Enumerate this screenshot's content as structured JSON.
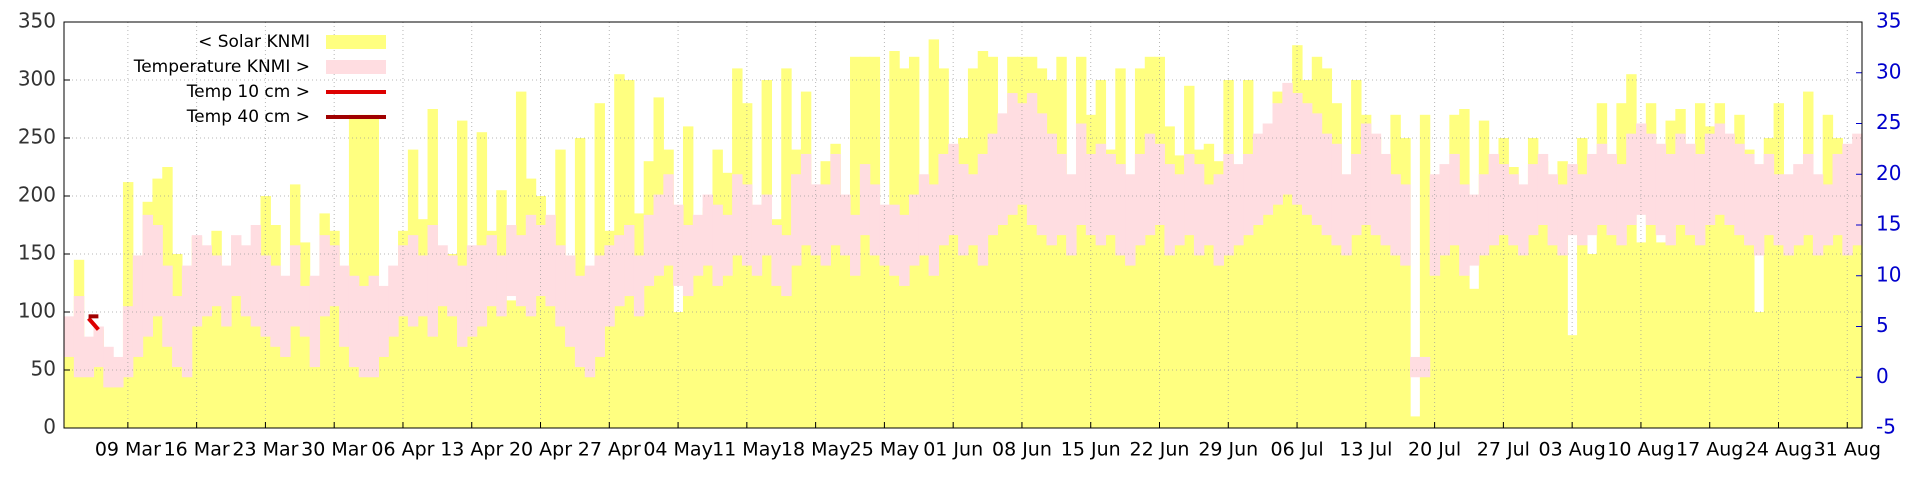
{
  "chart_data": {
    "type": "bar",
    "categories": [
      null,
      null,
      null,
      null,
      null,
      null,
      "09 Mar",
      null,
      null,
      null,
      null,
      null,
      null,
      "16 Mar",
      null,
      null,
      null,
      null,
      null,
      null,
      "23 Mar",
      null,
      null,
      null,
      null,
      null,
      null,
      "30 Mar",
      null,
      null,
      null,
      null,
      null,
      null,
      "06 Apr",
      null,
      null,
      null,
      null,
      null,
      null,
      "13 Apr",
      null,
      null,
      null,
      null,
      null,
      null,
      "20 Apr",
      null,
      null,
      null,
      null,
      null,
      null,
      "27 Apr",
      null,
      null,
      null,
      null,
      null,
      null,
      "04 May",
      null,
      null,
      null,
      null,
      null,
      null,
      "11 May",
      null,
      null,
      null,
      null,
      null,
      null,
      "18 May",
      null,
      null,
      null,
      null,
      null,
      null,
      "25 May",
      null,
      null,
      null,
      null,
      null,
      null,
      "01 Jun",
      null,
      null,
      null,
      null,
      null,
      null,
      "08 Jun",
      null,
      null,
      null,
      null,
      null,
      null,
      "15 Jun",
      null,
      null,
      null,
      null,
      null,
      null,
      "22 Jun",
      null,
      null,
      null,
      null,
      null,
      null,
      "29 Jun",
      null,
      null,
      null,
      null,
      null,
      null,
      "06 Jul",
      null,
      null,
      null,
      null,
      null,
      null,
      "13 Jul",
      null,
      null,
      null,
      null,
      null,
      null,
      "20 Jul",
      null,
      null,
      null,
      null,
      null,
      null,
      "27 Jul",
      null,
      null,
      null,
      null,
      null,
      null,
      "03 Aug",
      null,
      null,
      null,
      null,
      null,
      null,
      "10 Aug",
      null,
      null,
      null,
      null,
      null,
      null,
      "17 Aug",
      null,
      null,
      null,
      null,
      null,
      null,
      "24 Aug",
      null,
      null,
      null,
      null,
      null,
      null,
      "31 Aug",
      null
    ],
    "ylim": [
      0,
      350
    ],
    "yticks": [
      0,
      50,
      100,
      150,
      200,
      250,
      300,
      350
    ],
    "y2lim": [
      -5,
      35
    ],
    "y2ticks": [
      -5,
      0,
      5,
      10,
      15,
      20,
      25,
      30,
      35
    ],
    "grid": true,
    "legend": "upper left",
    "series": [
      {
        "name": "< Solar KNMI",
        "color": "#ffff80",
        "type": "bar",
        "values": [
          75,
          145,
          60,
          85,
          40,
          40,
          212,
          100,
          195,
          215,
          225,
          150,
          130,
          165,
          120,
          170,
          120,
          160,
          145,
          120,
          200,
          175,
          130,
          210,
          160,
          60,
          185,
          170,
          120,
          270,
          270,
          270,
          120,
          100,
          170,
          240,
          180,
          275,
          130,
          150,
          265,
          100,
          255,
          170,
          205,
          110,
          290,
          215,
          200,
          175,
          240,
          120,
          250,
          125,
          280,
          170,
          305,
          300,
          185,
          230,
          285,
          240,
          100,
          260,
          160,
          190,
          240,
          220,
          310,
          280,
          180,
          300,
          180,
          310,
          240,
          290,
          190,
          230,
          245,
          170,
          320,
          320,
          320,
          180,
          325,
          310,
          320,
          200,
          335,
          310,
          240,
          250,
          310,
          325,
          320,
          200,
          320,
          320,
          320,
          310,
          300,
          320,
          175,
          320,
          270,
          300,
          240,
          310,
          180,
          310,
          320,
          320,
          260,
          235,
          295,
          240,
          245,
          230,
          300,
          160,
          300,
          230,
          200,
          290,
          240,
          330,
          300,
          320,
          310,
          280,
          170,
          300,
          270,
          250,
          160,
          270,
          250,
          10,
          270,
          170,
          200,
          270,
          275,
          120,
          265,
          200,
          250,
          225,
          200,
          250,
          230,
          180,
          230,
          80,
          250,
          150,
          280,
          200,
          280,
          305,
          160,
          280,
          160,
          265,
          275,
          170,
          280,
          260,
          280,
          250,
          270,
          240,
          100,
          250,
          280,
          200,
          210,
          290,
          180,
          270,
          250,
          180,
          240
        ]
      },
      {
        "name": "Temperature KNMI >",
        "color": "#ffdde1",
        "type": "band",
        "axis": "y2",
        "low": [
          2,
          0,
          0,
          1,
          -1,
          -1,
          0,
          2,
          4,
          6,
          3,
          1,
          0,
          5,
          6,
          7,
          5,
          8,
          6,
          5,
          4,
          3,
          2,
          5,
          4,
          1,
          6,
          7,
          3,
          1,
          0,
          0,
          2,
          4,
          6,
          5,
          6,
          4,
          7,
          6,
          3,
          4,
          5,
          7,
          6,
          8,
          7,
          6,
          8,
          7,
          5,
          3,
          1,
          0,
          2,
          5,
          7,
          8,
          6,
          9,
          10,
          11,
          9,
          8,
          10,
          11,
          9,
          10,
          12,
          11,
          10,
          12,
          9,
          8,
          11,
          13,
          12,
          11,
          13,
          12,
          10,
          14,
          12,
          11,
          10,
          9,
          11,
          12,
          10,
          13,
          14,
          12,
          13,
          11,
          14,
          15,
          16,
          17,
          15,
          14,
          13,
          14,
          12,
          15,
          14,
          13,
          14,
          12,
          11,
          13,
          14,
          15,
          12,
          13,
          14,
          12,
          13,
          11,
          12,
          13,
          14,
          15,
          16,
          17,
          18,
          17,
          16,
          15,
          14,
          13,
          12,
          14,
          15,
          14,
          13,
          12,
          11,
          0,
          0,
          10,
          12,
          13,
          10,
          11,
          12,
          13,
          14,
          13,
          12,
          14,
          15,
          13,
          12,
          14,
          13,
          14,
          15,
          14,
          13,
          15,
          16,
          15,
          14,
          13,
          15,
          14,
          13,
          15,
          16,
          15,
          14,
          13,
          12,
          14,
          13,
          12,
          13,
          14,
          12,
          13,
          14,
          12,
          13
        ],
        "high": [
          6,
          8,
          4,
          5,
          3,
          2,
          7,
          12,
          16,
          15,
          11,
          8,
          11,
          14,
          13,
          12,
          11,
          14,
          13,
          15,
          12,
          11,
          10,
          13,
          9,
          10,
          14,
          13,
          11,
          10,
          9,
          10,
          9,
          11,
          13,
          14,
          12,
          15,
          13,
          12,
          11,
          13,
          13,
          14,
          12,
          15,
          14,
          16,
          15,
          16,
          13,
          12,
          10,
          11,
          12,
          13,
          14,
          15,
          12,
          16,
          18,
          20,
          17,
          15,
          16,
          18,
          17,
          16,
          20,
          19,
          17,
          18,
          15,
          14,
          20,
          22,
          19,
          19,
          22,
          18,
          16,
          21,
          19,
          17,
          17,
          16,
          18,
          20,
          19,
          22,
          23,
          21,
          20,
          22,
          24,
          26,
          28,
          27,
          28,
          26,
          24,
          22,
          20,
          25,
          22,
          23,
          22,
          21,
          20,
          22,
          24,
          23,
          21,
          20,
          22,
          21,
          19,
          20,
          22,
          21,
          22,
          24,
          25,
          27,
          29,
          28,
          27,
          26,
          24,
          23,
          20,
          22,
          25,
          24,
          22,
          20,
          19,
          2,
          2,
          20,
          21,
          22,
          19,
          18,
          20,
          22,
          21,
          20,
          19,
          21,
          22,
          20,
          19,
          21,
          20,
          22,
          23,
          22,
          21,
          24,
          25,
          24,
          23,
          22,
          24,
          23,
          22,
          24,
          25,
          24,
          23,
          22,
          21,
          22,
          20,
          20,
          21,
          22,
          20,
          19,
          22,
          23,
          24
        ]
      },
      {
        "name": "Temp 10 cm >",
        "color": "#dd0000",
        "type": "line",
        "axis": "y2",
        "values": [
          null,
          null,
          5.8,
          4.7,
          null,
          null,
          null,
          null,
          null,
          null,
          null,
          null,
          null,
          null,
          null,
          null,
          null,
          null,
          null,
          null,
          null,
          null,
          null,
          null,
          null,
          null,
          null,
          null,
          null,
          null,
          null,
          null,
          null,
          null,
          null,
          null,
          null,
          null,
          null,
          null,
          null,
          null,
          null,
          null,
          null,
          null,
          null,
          null,
          null,
          null,
          null,
          null,
          null,
          null,
          null,
          null,
          null,
          null,
          null,
          null,
          null,
          null,
          null,
          null,
          null,
          null,
          null,
          null,
          null,
          null,
          null,
          null,
          null,
          null,
          null,
          null,
          null,
          null,
          null,
          null,
          null,
          null,
          null,
          null,
          null,
          null,
          null,
          null,
          null,
          null,
          null,
          null,
          null,
          null,
          null,
          null,
          null,
          null,
          null,
          null,
          null,
          null,
          null,
          null,
          null,
          null,
          null,
          null,
          null,
          null,
          null,
          null,
          null,
          null,
          null,
          null,
          null,
          null,
          null,
          null,
          null,
          null,
          null,
          null,
          null,
          null,
          null,
          null,
          null,
          null,
          null,
          null,
          null,
          null,
          null,
          null,
          null,
          null,
          null,
          null,
          null,
          null,
          null,
          null,
          null,
          null,
          null,
          null,
          null,
          null,
          null,
          null,
          null,
          null,
          null,
          null,
          null,
          null,
          null,
          null,
          null,
          null,
          null,
          null,
          null,
          null,
          null,
          null,
          null,
          null,
          null,
          null,
          null,
          null,
          null,
          null,
          null,
          null,
          null,
          null,
          null,
          null,
          null
        ]
      },
      {
        "name": "Temp 40 cm >",
        "color": "#a00000",
        "type": "line",
        "axis": "y2",
        "values": [
          null,
          null,
          6,
          6,
          null,
          null,
          null,
          null,
          null,
          null,
          null,
          null,
          null,
          null,
          null,
          null,
          null,
          null,
          null,
          null,
          null,
          null,
          null,
          null,
          null,
          null,
          null,
          null,
          null,
          null,
          null,
          null,
          null,
          null,
          null,
          null,
          null,
          null,
          null,
          null,
          null,
          null,
          null,
          null,
          null,
          null,
          null,
          null,
          null,
          null,
          null,
          null,
          null,
          null,
          null,
          null,
          null,
          null,
          null,
          null,
          null,
          null,
          null,
          null,
          null,
          null,
          null,
          null,
          null,
          null,
          null,
          null,
          null,
          null,
          null,
          null,
          null,
          null,
          null,
          null,
          null,
          null,
          null,
          null,
          null,
          null,
          null,
          null,
          null,
          null,
          null,
          null,
          null,
          null,
          null,
          null,
          null,
          null,
          null,
          null,
          null,
          null,
          null,
          null,
          null,
          null,
          null,
          null,
          null,
          null,
          null,
          null,
          null,
          null,
          null,
          null,
          null,
          null,
          null,
          null,
          null,
          null,
          null,
          null,
          null,
          null,
          null,
          null,
          null,
          null,
          null,
          null,
          null,
          null,
          null,
          null,
          null,
          null,
          null,
          null,
          null,
          null,
          null,
          null,
          null,
          null,
          null,
          null,
          null,
          null,
          null,
          null,
          null,
          null,
          null,
          null,
          null,
          null,
          null,
          null,
          null,
          null,
          null,
          null,
          null,
          null,
          null,
          null,
          null,
          null,
          null,
          null,
          null,
          null,
          null,
          null,
          null,
          null,
          null,
          null,
          null,
          null,
          null
        ]
      }
    ]
  }
}
